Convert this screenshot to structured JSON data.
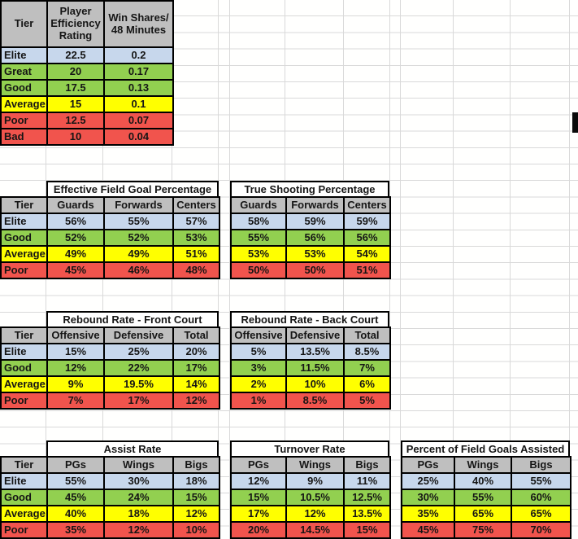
{
  "colors": {
    "header_bg": "#BFBFBF",
    "title_bg": "#FFFFFF",
    "border": "#000000",
    "gridline": "#D9D9D9",
    "tier_elite": "#C7D7EC",
    "tier_great": "#92D050",
    "tier_good": "#92D050",
    "tier_average": "#FFFF00",
    "tier_poor": "#F1544D",
    "tier_bad": "#F1544D"
  },
  "tables": {
    "per_ws": {
      "headers": [
        "Tier",
        "Player Efficiency Rating",
        "Win Shares/ 48 Minutes"
      ],
      "rows": [
        {
          "tier": "Elite",
          "color": "elite",
          "values": [
            "22.5",
            "0.2"
          ]
        },
        {
          "tier": "Great",
          "color": "great",
          "values": [
            "20",
            "0.17"
          ]
        },
        {
          "tier": "Good",
          "color": "good",
          "values": [
            "17.5",
            "0.13"
          ]
        },
        {
          "tier": "Average",
          "color": "average",
          "values": [
            "15",
            "0.1"
          ]
        },
        {
          "tier": "Poor",
          "color": "poor",
          "values": [
            "12.5",
            "0.07"
          ]
        },
        {
          "tier": "Bad",
          "color": "bad",
          "values": [
            "10",
            "0.04"
          ]
        }
      ]
    },
    "efg": {
      "title": "Effective Field Goal Percentage",
      "headers": [
        "Tier",
        "Guards",
        "Forwards",
        "Centers"
      ],
      "rows": [
        {
          "tier": "Elite",
          "color": "elite",
          "values": [
            "56%",
            "55%",
            "57%"
          ]
        },
        {
          "tier": "Good",
          "color": "good",
          "values": [
            "52%",
            "52%",
            "53%"
          ]
        },
        {
          "tier": "Average",
          "color": "average",
          "values": [
            "49%",
            "49%",
            "51%"
          ]
        },
        {
          "tier": "Poor",
          "color": "poor",
          "values": [
            "45%",
            "46%",
            "48%"
          ]
        }
      ]
    },
    "true_shooting": {
      "title": "True Shooting Percentage",
      "headers": [
        "Guards",
        "Forwards",
        "Centers"
      ],
      "rows": [
        {
          "color": "elite",
          "values": [
            "58%",
            "59%",
            "59%"
          ]
        },
        {
          "color": "good",
          "values": [
            "55%",
            "56%",
            "56%"
          ]
        },
        {
          "color": "average",
          "values": [
            "53%",
            "53%",
            "54%"
          ]
        },
        {
          "color": "poor",
          "values": [
            "50%",
            "50%",
            "51%"
          ]
        }
      ]
    },
    "rebound_front": {
      "title": "Rebound Rate - Front Court",
      "headers": [
        "Tier",
        "Offensive",
        "Defensive",
        "Total"
      ],
      "rows": [
        {
          "tier": "Elite",
          "color": "elite",
          "values": [
            "15%",
            "25%",
            "20%"
          ]
        },
        {
          "tier": "Good",
          "color": "good",
          "values": [
            "12%",
            "22%",
            "17%"
          ]
        },
        {
          "tier": "Average",
          "color": "average",
          "values": [
            "9%",
            "19.5%",
            "14%"
          ]
        },
        {
          "tier": "Poor",
          "color": "poor",
          "values": [
            "7%",
            "17%",
            "12%"
          ]
        }
      ]
    },
    "rebound_back": {
      "title": "Rebound Rate - Back Court",
      "headers": [
        "Offensive",
        "Defensive",
        "Total"
      ],
      "rows": [
        {
          "color": "elite",
          "values": [
            "5%",
            "13.5%",
            "8.5%"
          ]
        },
        {
          "color": "good",
          "values": [
            "3%",
            "11.5%",
            "7%"
          ]
        },
        {
          "color": "average",
          "values": [
            "2%",
            "10%",
            "6%"
          ]
        },
        {
          "color": "poor",
          "values": [
            "1%",
            "8.5%",
            "5%"
          ]
        }
      ]
    },
    "assist_rate": {
      "title": "Assist Rate",
      "headers": [
        "Tier",
        "PGs",
        "Wings",
        "Bigs"
      ],
      "rows": [
        {
          "tier": "Elite",
          "color": "elite",
          "values": [
            "55%",
            "30%",
            "18%"
          ]
        },
        {
          "tier": "Good",
          "color": "good",
          "values": [
            "45%",
            "24%",
            "15%"
          ]
        },
        {
          "tier": "Average",
          "color": "average",
          "values": [
            "40%",
            "18%",
            "12%"
          ]
        },
        {
          "tier": "Poor",
          "color": "poor",
          "values": [
            "35%",
            "12%",
            "10%"
          ]
        }
      ]
    },
    "turnover_rate": {
      "title": "Turnover Rate",
      "headers": [
        "PGs",
        "Wings",
        "Bigs"
      ],
      "rows": [
        {
          "color": "elite",
          "values": [
            "12%",
            "9%",
            "11%"
          ]
        },
        {
          "color": "good",
          "values": [
            "15%",
            "10.5%",
            "12.5%"
          ]
        },
        {
          "color": "average",
          "values": [
            "17%",
            "12%",
            "13.5%"
          ]
        },
        {
          "color": "poor",
          "values": [
            "20%",
            "14.5%",
            "15%"
          ]
        }
      ]
    },
    "fg_assisted": {
      "title": "Percent of Field Goals Assisted",
      "headers": [
        "PGs",
        "Wings",
        "Bigs"
      ],
      "rows": [
        {
          "color": "elite",
          "values": [
            "25%",
            "40%",
            "55%"
          ]
        },
        {
          "color": "good",
          "values": [
            "30%",
            "55%",
            "60%"
          ]
        },
        {
          "color": "average",
          "values": [
            "35%",
            "65%",
            "65%"
          ]
        },
        {
          "color": "poor",
          "values": [
            "45%",
            "75%",
            "70%"
          ]
        }
      ]
    }
  }
}
